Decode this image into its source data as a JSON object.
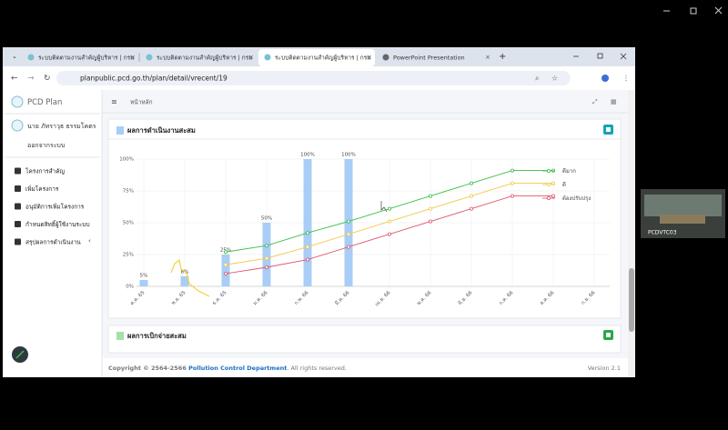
{
  "browser": {
    "tabs": [
      "ระบบติดตามงานสำคัญผู้บริหาร | กรม",
      "ระบบติดตามงานสำคัญผู้บริหาร | กรม",
      "ระบบติดตามงานสำคัญผู้บริหาร | กรม",
      "PowerPoint Presentation"
    ],
    "url": "planpublic.pcd.go.th/plan/detail/vrecent/19"
  },
  "sidebar": {
    "app_name": "PCD Plan",
    "user": "นาย ภัทราวุธ ธรรมโคตร",
    "logout": "ออกจากระบบ",
    "menu": [
      "โครงการสำคัญ",
      "เพิ่มโครงการ",
      "อนุมัติการเพิ่มโครงการ",
      "กำหนดสิทธิ์ผู้ใช้งานระบบ",
      "สรุปผลการดำเนินงาน"
    ]
  },
  "breadcrumb": "หน้าหลัก",
  "cards": [
    "ผลการดำเนินงานสะสม",
    "ผลการเบิกจ่ายสะสม"
  ],
  "chart_data": {
    "type": "combo",
    "categories": [
      "ต.ค. 65",
      "พ.ย. 65",
      "ธ.ค. 65",
      "ม.ค. 66",
      "ก.พ. 66",
      "มี.ค. 66",
      "เม.ย. 66",
      "พ.ค. 66",
      "มิ.ย. 66",
      "ก.ค. 66",
      "ส.ค. 66",
      "ก.ย. 66"
    ],
    "bars": {
      "color": "#a8cdf6",
      "values": [
        5,
        8,
        25,
        50,
        100,
        100,
        null,
        null,
        null,
        null,
        null,
        null
      ],
      "value_labels": [
        "5%",
        "8%",
        "25%",
        "50%",
        "100%",
        "100%",
        null,
        null,
        null,
        null,
        null,
        null
      ]
    },
    "series": [
      {
        "name": "ดีมาก",
        "color": "#3cbf4a",
        "values": [
          null,
          null,
          27,
          32,
          42,
          51,
          61,
          71,
          81,
          91,
          91,
          null
        ]
      },
      {
        "name": "ดี",
        "color": "#f2c94c",
        "values": [
          null,
          null,
          17,
          22,
          31,
          41,
          51,
          61,
          71,
          81,
          81,
          null
        ]
      },
      {
        "name": "ต้องปรับปรุง",
        "color": "#e0566c",
        "values": [
          null,
          null,
          10,
          15,
          21,
          31,
          41,
          51,
          61,
          71,
          71,
          null
        ]
      }
    ],
    "ylim": [
      0,
      100
    ],
    "yticks": [
      {
        "value": 0,
        "label": "0%"
      },
      {
        "value": 25,
        "label": "25%"
      },
      {
        "value": 50,
        "label": "50%"
      },
      {
        "value": 75,
        "label": "75%"
      },
      {
        "value": 100,
        "label": "100%"
      }
    ],
    "grid": true
  },
  "footer": {
    "copyright": "Copyright © 2564-2566 ",
    "org": "Pollution Control Department",
    "rights": ". All rights reserved.",
    "version": "Version 2.1"
  },
  "video": {
    "label": "PCDVTC03"
  }
}
